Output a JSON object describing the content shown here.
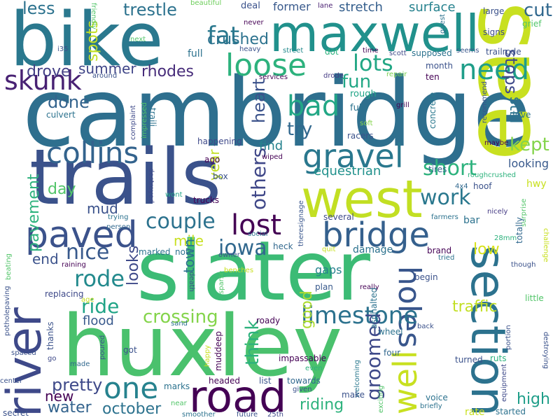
{
  "title": "",
  "words": [
    {
      "text": "cambridge",
      "color": "#2e6f8e"
    },
    {
      "text": "trails",
      "color": "#3b528b"
    },
    {
      "text": "slater",
      "color": "#3cbb75"
    },
    {
      "text": "huxley",
      "color": "#4ac16d"
    },
    {
      "text": "bike",
      "color": "#2a788e"
    },
    {
      "text": "east",
      "color": "#c8e020"
    },
    {
      "text": "maxwell",
      "color": "#21918c"
    },
    {
      "text": "west",
      "color": "#c2df23"
    },
    {
      "text": "section",
      "color": "#2c728e"
    },
    {
      "text": "river",
      "color": "#3e4989"
    },
    {
      "text": "road",
      "color": "#440154"
    },
    {
      "text": "paved",
      "color": "#3b528b"
    },
    {
      "text": "bridge",
      "color": "#35608d"
    },
    {
      "text": "gravel",
      "color": "#2a788e"
    },
    {
      "text": "loose",
      "color": "#2db27d"
    },
    {
      "text": "collins",
      "color": "#33638d"
    },
    {
      "text": "one",
      "color": "#26828e"
    },
    {
      "text": "skunk",
      "color": "#482173"
    },
    {
      "text": "need",
      "color": "#1f9e89"
    },
    {
      "text": "bad",
      "color": "#22a785"
    },
    {
      "text": "lost",
      "color": "#440154"
    },
    {
      "text": "holes",
      "color": "#39568c"
    },
    {
      "text": "well",
      "color": "#c8e020"
    },
    {
      "text": "limestone",
      "color": "#2c728e"
    },
    {
      "text": "rode",
      "color": "#238a8d"
    },
    {
      "text": "fat",
      "color": "#2a788e"
    },
    {
      "text": "lots",
      "color": "#22a785"
    },
    {
      "text": "work",
      "color": "#2a788e"
    },
    {
      "text": "short",
      "color": "#2db27d"
    },
    {
      "text": "iowa",
      "color": "#31688e"
    },
    {
      "text": "couple",
      "color": "#2c728e"
    },
    {
      "text": "nice",
      "color": "#38598c"
    },
    {
      "text": "ride",
      "color": "#20a486"
    },
    {
      "text": "crossing",
      "color": "#84d44b"
    },
    {
      "text": "others",
      "color": "#3f4788"
    },
    {
      "text": "groomed",
      "color": "#3e4989"
    },
    {
      "text": "heart",
      "color": "#3b528b"
    },
    {
      "text": "think",
      "color": "#2db27d"
    },
    {
      "text": "fun",
      "color": "#22a785"
    },
    {
      "text": "try",
      "color": "#31688e"
    },
    {
      "text": "crushed",
      "color": "#2c728e"
    },
    {
      "text": "done",
      "color": "#33638d"
    },
    {
      "text": "drove",
      "color": "#433e85"
    },
    {
      "text": "rhodes",
      "color": "#472c7a"
    },
    {
      "text": "stops",
      "color": "#3e4989"
    },
    {
      "text": "still",
      "color": "#2c728e"
    },
    {
      "text": "spots",
      "color": "#c2df23"
    },
    {
      "text": "summer",
      "color": "#404688"
    },
    {
      "text": "trestle",
      "color": "#2c728e"
    },
    {
      "text": "cut",
      "color": "#31688e"
    },
    {
      "text": "less",
      "color": "#2c728e"
    },
    {
      "text": "kept",
      "color": "#84d44b"
    },
    {
      "text": "looking",
      "color": "#38598c"
    },
    {
      "text": "find",
      "color": "#26828e"
    },
    {
      "text": "year",
      "color": "#c2df23"
    },
    {
      "text": "mud",
      "color": "#3b528b"
    },
    {
      "text": "day",
      "color": "#52c569"
    },
    {
      "text": "pavement",
      "color": "#2db27d"
    },
    {
      "text": "mile",
      "color": "#c8e020"
    },
    {
      "text": "end",
      "color": "#3b528b"
    },
    {
      "text": "looks",
      "color": "#3e4989"
    },
    {
      "text": "town",
      "color": "#2c728e"
    },
    {
      "text": "good",
      "color": "#addc30"
    },
    {
      "text": "traffic",
      "color": "#c2df23"
    },
    {
      "text": "low",
      "color": "#d8e219"
    },
    {
      "text": "high",
      "color": "#1f9e89"
    },
    {
      "text": "pretty",
      "color": "#3e4989"
    },
    {
      "text": "new",
      "color": "#440154"
    },
    {
      "text": "water",
      "color": "#33638d"
    },
    {
      "text": "october",
      "color": "#2c728e"
    },
    {
      "text": "riding",
      "color": "#2db27d"
    },
    {
      "text": "flood",
      "color": "#38598c"
    },
    {
      "text": "equestrian",
      "color": "#21918c"
    },
    {
      "text": "surface",
      "color": "#26828e"
    },
    {
      "text": "stretch",
      "color": "#355f8d"
    },
    {
      "text": "former",
      "color": "#38598c"
    },
    {
      "text": "gaps",
      "color": "#26828e"
    },
    {
      "text": "damage",
      "color": "#2c728e"
    },
    {
      "text": "beautiful",
      "color": "#6ccd5a"
    },
    {
      "text": "deal",
      "color": "#3b528b"
    },
    {
      "text": "lane",
      "color": "#481f70"
    },
    {
      "text": "large",
      "color": "#3b528b"
    },
    {
      "text": "signs",
      "color": "#3e4989"
    },
    {
      "text": "grief",
      "color": "#52c569"
    },
    {
      "text": "trailrode",
      "color": "#3b528b"
    },
    {
      "text": "seems",
      "color": "#39568c"
    },
    {
      "text": "month",
      "color": "#3b528b"
    },
    {
      "text": "ten",
      "color": "#440154"
    },
    {
      "text": "supposed",
      "color": "#2c728e"
    },
    {
      "text": "time",
      "color": "#440154"
    },
    {
      "text": "scott",
      "color": "#3e4989"
    },
    {
      "text": "street",
      "color": "#238a8d"
    },
    {
      "text": "dot",
      "color": "#2db27d"
    },
    {
      "text": "drode",
      "color": "#443a83"
    },
    {
      "text": "repair",
      "color": "#7ad151"
    },
    {
      "text": "rough",
      "color": "#20a486"
    },
    {
      "text": "fully",
      "color": "#2c728e"
    },
    {
      "text": "grill",
      "color": "#440154"
    },
    {
      "text": "soft",
      "color": "#84d44b"
    },
    {
      "text": "racers",
      "color": "#3b528b"
    },
    {
      "text": "tires",
      "color": "#33638d"
    },
    {
      "text": "recommend",
      "color": "#3b528b"
    },
    {
      "text": "drive",
      "color": "#2c728e"
    },
    {
      "text": "maybe",
      "color": "#440154"
    },
    {
      "text": "concrete",
      "color": "#2a788e"
    },
    {
      "text": "4x4",
      "color": "#31688e"
    },
    {
      "text": "hoof",
      "color": "#3b528b"
    },
    {
      "text": "roughcrushed",
      "color": "#2db27d"
    },
    {
      "text": "hwy",
      "color": "#c8e020"
    },
    {
      "text": "surprise",
      "color": "#52c569"
    },
    {
      "text": "bar",
      "color": "#2c728e"
    },
    {
      "text": "nicely",
      "color": "#443a83"
    },
    {
      "text": "totally",
      "color": "#31688e"
    },
    {
      "text": "28mm",
      "color": "#2db27d"
    },
    {
      "text": "challenge",
      "color": "#c8e020"
    },
    {
      "text": "though",
      "color": "#3b528b"
    },
    {
      "text": "brand",
      "color": "#440154"
    },
    {
      "text": "tried",
      "color": "#2c728e"
    },
    {
      "text": "farmers",
      "color": "#2c728e"
    },
    {
      "text": "several",
      "color": "#3e4989"
    },
    {
      "text": "theresignage",
      "color": "#39568c"
    },
    {
      "text": "quit",
      "color": "#c8e020"
    },
    {
      "text": "begin",
      "color": "#3b528b"
    },
    {
      "text": "plan",
      "color": "#38598c"
    },
    {
      "text": "really",
      "color": "#440154"
    },
    {
      "text": "asphalted",
      "color": "#2c728e"
    },
    {
      "text": "back",
      "color": "#3b528b"
    },
    {
      "text": "wheel",
      "color": "#2c728e"
    },
    {
      "text": "four",
      "color": "#31688e"
    },
    {
      "text": "welcoming",
      "color": "#2a788e"
    },
    {
      "text": "even",
      "color": "#2db27d"
    },
    {
      "text": "turned",
      "color": "#3b528b"
    },
    {
      "text": "ruts",
      "color": "#2db27d"
    },
    {
      "text": "portion",
      "color": "#3b528b"
    },
    {
      "text": "equipment",
      "color": "#3e4989"
    },
    {
      "text": "little",
      "color": "#52c569"
    },
    {
      "text": "destroying",
      "color": "#3b528b"
    },
    {
      "text": "destroyed",
      "color": "#3e4989"
    },
    {
      "text": "wont",
      "color": "#20a486"
    },
    {
      "text": "trying",
      "color": "#2c728e"
    },
    {
      "text": "person",
      "color": "#31688e"
    },
    {
      "text": "marked",
      "color": "#2c728e"
    },
    {
      "text": "note",
      "color": "#2c728e"
    },
    {
      "text": "owner",
      "color": "#3b528b"
    },
    {
      "text": "heck",
      "color": "#31688e"
    },
    {
      "text": "social",
      "color": "#2c728e"
    },
    {
      "text": "raining",
      "color": "#440154"
    },
    {
      "text": "benches",
      "color": "#c8e020"
    },
    {
      "text": "death",
      "color": "#3b528b"
    },
    {
      "text": "sparse",
      "color": "#52c569"
    },
    {
      "text": "roady",
      "color": "#440154"
    },
    {
      "text": "sand",
      "color": "#2c728e"
    },
    {
      "text": "age",
      "color": "#c8e020"
    },
    {
      "text": "replacing",
      "color": "#3e4989"
    },
    {
      "text": "thanks",
      "color": "#3b528b"
    },
    {
      "text": "potholepaving",
      "color": "#3b528b"
    },
    {
      "text": "spaced",
      "color": "#3b528b"
    },
    {
      "text": "go",
      "color": "#3e4989"
    },
    {
      "text": "made",
      "color": "#31688e"
    },
    {
      "text": "poured",
      "color": "#3b528b"
    },
    {
      "text": "got",
      "color": "#3b528b"
    },
    {
      "text": "happy",
      "color": "#c8e020"
    },
    {
      "text": "muddeep",
      "color": "#440154"
    },
    {
      "text": "center",
      "color": "#3b528b"
    },
    {
      "text": "secret",
      "color": "#3b528b"
    },
    {
      "text": "marks",
      "color": "#2c728e"
    },
    {
      "text": "near",
      "color": "#52c569"
    },
    {
      "text": "smoother",
      "color": "#2c728e"
    },
    {
      "text": "future",
      "color": "#3b528b"
    },
    {
      "text": "25th",
      "color": "#3e4989"
    },
    {
      "text": "headed",
      "color": "#440154"
    },
    {
      "text": "list",
      "color": "#3b528b"
    },
    {
      "text": "towards",
      "color": "#31688e"
    },
    {
      "text": "given",
      "color": "#3b528b"
    },
    {
      "text": "impassable",
      "color": "#440154"
    },
    {
      "text": "make",
      "color": "#3b528b"
    },
    {
      "text": "exciting",
      "color": "#52c569"
    },
    {
      "text": "voice",
      "color": "#2c728e"
    },
    {
      "text": "briefly",
      "color": "#2c728e"
    },
    {
      "text": "rate",
      "color": "#c8e020"
    },
    {
      "text": "started",
      "color": "#2c728e"
    },
    {
      "text": "friendly",
      "color": "#52c569"
    },
    {
      "text": "never",
      "color": "#440154"
    },
    {
      "text": "heavy",
      "color": "#3b528b"
    },
    {
      "text": "services",
      "color": "#440154"
    },
    {
      "text": "full",
      "color": "#2c728e"
    },
    {
      "text": "next",
      "color": "#52c569"
    },
    {
      "text": "i35",
      "color": "#3b528b"
    },
    {
      "text": "around",
      "color": "#3b528b"
    },
    {
      "text": "culvert",
      "color": "#2c728e"
    },
    {
      "text": "complaint",
      "color": "#3e4989"
    },
    {
      "text": "traili",
      "color": "#2c728e"
    },
    {
      "text": "impressed",
      "color": "#52c569"
    },
    {
      "text": "happening",
      "color": "#3e4989"
    },
    {
      "text": "ago",
      "color": "#440154"
    },
    {
      "text": "wiped",
      "color": "#440154"
    },
    {
      "text": "box",
      "color": "#3b528b"
    },
    {
      "text": "trucks",
      "color": "#440154"
    },
    {
      "text": "guest",
      "color": "#2c728e"
    },
    {
      "text": "beating",
      "color": "#52c569"
    }
  ]
}
